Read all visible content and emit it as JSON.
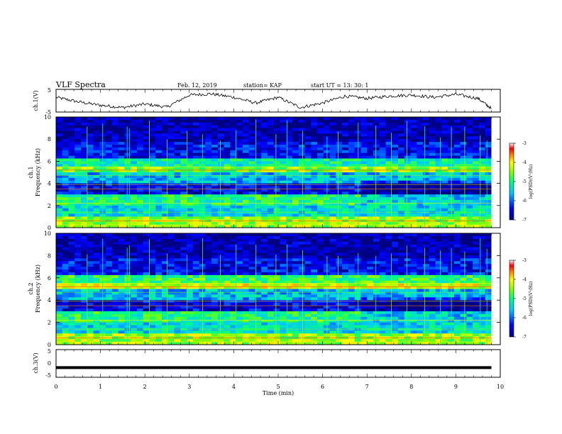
{
  "header": {
    "title": "VLF Spectra",
    "date": "Feb. 12, 2019",
    "station": "station= KAP",
    "start": "start  UT =  13: 30: 1"
  },
  "colors": {
    "low": "#00008b",
    "mid": "#00ffff",
    "high": "#ff0000",
    "trace": "#000000"
  },
  "chart_data": [
    {
      "type": "line",
      "panel": "ch1-voltage",
      "ylabel": "ch.1(V)",
      "ylim": [
        -5,
        5
      ],
      "yticks": [
        "5",
        "-5"
      ],
      "x": [
        0,
        0.5,
        1,
        1.5,
        2,
        2.5,
        3,
        3.5,
        4,
        4.5,
        5,
        5.5,
        6,
        6.5,
        7,
        7.5,
        8,
        8.5,
        9,
        9.5,
        9.8
      ],
      "y": [
        1.5,
        -0.5,
        -2.0,
        -3.0,
        -1.5,
        -2.8,
        2.5,
        3.0,
        1.5,
        -1.0,
        1.5,
        -3.0,
        -1.0,
        2.0,
        1.0,
        2.0,
        2.5,
        1.5,
        2.8,
        1.0,
        -3.5
      ]
    },
    {
      "type": "heatmap",
      "panel": "ch1-spectrogram",
      "ylabel": "ch.1\nFrequency (kHz)",
      "yticks": [
        "0",
        "2",
        "4",
        "6",
        "8",
        "10"
      ],
      "ylim": [
        0,
        10
      ],
      "xlim": [
        0,
        9.8
      ],
      "colorbar": {
        "label": "log(PSD)(V²/Hz)",
        "range": [
          -7,
          -3
        ],
        "ticks": [
          "-3",
          "-4",
          "-5",
          "-6",
          "-7"
        ]
      }
    },
    {
      "type": "heatmap",
      "panel": "ch2-spectrogram",
      "ylabel": "ch.2\nFrequency (kHz)",
      "yticks": [
        "0",
        "2",
        "4",
        "6",
        "8",
        "10"
      ],
      "ylim": [
        0,
        10
      ],
      "xlim": [
        0,
        9.8
      ],
      "colorbar": {
        "label": "log(PSD)(V²/Hz)",
        "range": [
          -7,
          -3
        ],
        "ticks": [
          "-3",
          "-4",
          "-5",
          "-6",
          "-7"
        ]
      }
    },
    {
      "type": "line",
      "panel": "ch3-voltage",
      "ylabel": "ch.3(V)",
      "ylim": [
        -5,
        5
      ],
      "yticks": [
        "5",
        "0",
        "-5"
      ],
      "x": [
        0,
        9.8
      ],
      "y": [
        -1.5,
        -1.5
      ]
    }
  ],
  "xaxis": {
    "label": "Time  (min)",
    "ticks": [
      "0",
      "1",
      "2",
      "3",
      "4",
      "5",
      "6",
      "7",
      "8",
      "9",
      "10"
    ],
    "xlim": [
      0,
      10
    ]
  }
}
